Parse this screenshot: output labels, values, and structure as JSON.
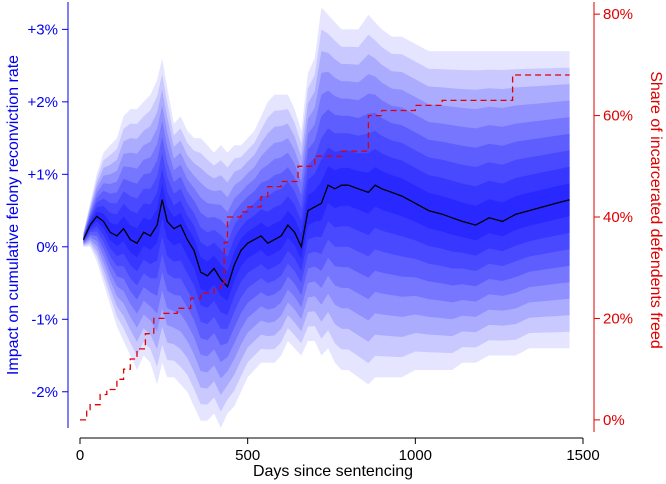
{
  "chart_data": {
    "type": "area",
    "xlabel": "Days since sentencing",
    "ylabel_left": "Impact on cumulative felony reconviction rate",
    "ylabel_right": "Share of incarcerated defendents freed",
    "xlim": [
      0,
      1500
    ],
    "ylim_left": [
      -2.5,
      3.35
    ],
    "ylim_right": [
      -0.016,
      0.82
    ],
    "x_ticks": [
      0,
      500,
      1000,
      1500
    ],
    "x_tick_labels": [
      "0",
      "500",
      "1000",
      "1500"
    ],
    "left_ticks": [
      -2,
      -1,
      0,
      1,
      2,
      3
    ],
    "left_tick_labels": [
      "-2%",
      "-1%",
      "0%",
      "+1%",
      "+2%",
      "+3%"
    ],
    "right_ticks": [
      0,
      0.2,
      0.4,
      0.6,
      0.8
    ],
    "right_tick_labels": [
      "0%",
      "20%",
      "40%",
      "60%",
      "80%"
    ],
    "colors": {
      "left_axis": "#0000ee",
      "right_axis": "#e00000",
      "estimate": "#000000",
      "band": "#0000ff"
    },
    "band_opacities": [
      0.1,
      0.12,
      0.14,
      0.16,
      0.18,
      0.2,
      0.22,
      0.24,
      0.26
    ],
    "estimate": {
      "name": "Impact on cumulative felony reconviction rate",
      "x": [
        10,
        30,
        50,
        70,
        90,
        110,
        130,
        150,
        170,
        190,
        210,
        230,
        245,
        260,
        280,
        300,
        320,
        340,
        360,
        380,
        400,
        420,
        440,
        460,
        480,
        500,
        520,
        540,
        560,
        580,
        600,
        620,
        640,
        660,
        680,
        700,
        720,
        740,
        760,
        780,
        800,
        830,
        860,
        880,
        900,
        930,
        960,
        1000,
        1040,
        1080,
        1110,
        1140,
        1180,
        1220,
        1260,
        1300,
        1340,
        1380,
        1420,
        1460
      ],
      "y": [
        0.1,
        0.3,
        0.42,
        0.35,
        0.2,
        0.15,
        0.25,
        0.1,
        0.05,
        0.2,
        0.15,
        0.3,
        0.65,
        0.35,
        0.25,
        0.3,
        0.1,
        -0.05,
        -0.35,
        -0.4,
        -0.3,
        -0.45,
        -0.55,
        -0.25,
        -0.05,
        0.05,
        0.1,
        0.15,
        0.05,
        0.1,
        0.15,
        0.3,
        0.2,
        0.0,
        0.5,
        0.55,
        0.6,
        0.85,
        0.8,
        0.85,
        0.85,
        0.8,
        0.75,
        0.85,
        0.8,
        0.75,
        0.7,
        0.6,
        0.5,
        0.45,
        0.4,
        0.35,
        0.3,
        0.4,
        0.35,
        0.45,
        0.5,
        0.55,
        0.6,
        0.65
      ],
      "ci_upper": [
        0.2,
        0.6,
        1.0,
        1.3,
        1.4,
        1.5,
        1.8,
        1.9,
        1.9,
        2.0,
        2.1,
        2.3,
        2.6,
        2.2,
        1.7,
        1.8,
        1.6,
        1.5,
        1.5,
        1.4,
        1.3,
        1.4,
        1.3,
        1.4,
        1.4,
        1.5,
        1.6,
        1.8,
        2.0,
        2.1,
        2.1,
        2.1,
        1.9,
        1.6,
        2.4,
        2.6,
        3.3,
        3.2,
        3.1,
        3.0,
        3.0,
        3.0,
        3.2,
        3.1,
        3.0,
        2.9,
        2.9,
        2.8,
        2.7,
        2.7,
        2.7,
        2.7,
        2.7,
        2.7,
        2.7,
        2.7,
        2.7,
        2.7,
        2.7,
        2.7
      ],
      "ci_lower": [
        0.0,
        0.0,
        -0.2,
        -0.5,
        -0.8,
        -1.1,
        -1.3,
        -1.5,
        -1.7,
        -1.5,
        -1.6,
        -1.9,
        -1.6,
        -1.8,
        -1.8,
        -1.9,
        -2.0,
        -2.2,
        -2.4,
        -2.4,
        -2.3,
        -2.5,
        -2.3,
        -2.2,
        -2.0,
        -1.8,
        -1.7,
        -1.6,
        -1.6,
        -1.6,
        -1.5,
        -1.3,
        -1.4,
        -1.5,
        -1.3,
        -1.3,
        -1.5,
        -1.4,
        -1.6,
        -1.7,
        -1.7,
        -1.8,
        -1.9,
        -1.8,
        -1.8,
        -1.8,
        -1.8,
        -1.7,
        -1.7,
        -1.7,
        -1.7,
        -1.6,
        -1.6,
        -1.5,
        -1.5,
        -1.5,
        -1.4,
        -1.4,
        -1.4,
        -1.4
      ]
    },
    "share_freed": {
      "name": "Share of incarcerated defendents freed",
      "x": [
        0,
        20,
        30,
        60,
        80,
        110,
        130,
        150,
        170,
        195,
        220,
        250,
        290,
        330,
        360,
        400,
        420,
        430,
        440,
        480,
        500,
        540,
        560,
        600,
        650,
        700,
        740,
        780,
        840,
        860,
        900,
        1000,
        1080,
        1180,
        1240,
        1290,
        1460
      ],
      "y": [
        0.0,
        0.02,
        0.03,
        0.05,
        0.06,
        0.08,
        0.1,
        0.12,
        0.14,
        0.17,
        0.2,
        0.21,
        0.22,
        0.24,
        0.25,
        0.26,
        0.27,
        0.35,
        0.4,
        0.41,
        0.42,
        0.44,
        0.46,
        0.47,
        0.5,
        0.52,
        0.52,
        0.53,
        0.53,
        0.6,
        0.61,
        0.62,
        0.63,
        0.63,
        0.63,
        0.68,
        0.68
      ]
    }
  }
}
